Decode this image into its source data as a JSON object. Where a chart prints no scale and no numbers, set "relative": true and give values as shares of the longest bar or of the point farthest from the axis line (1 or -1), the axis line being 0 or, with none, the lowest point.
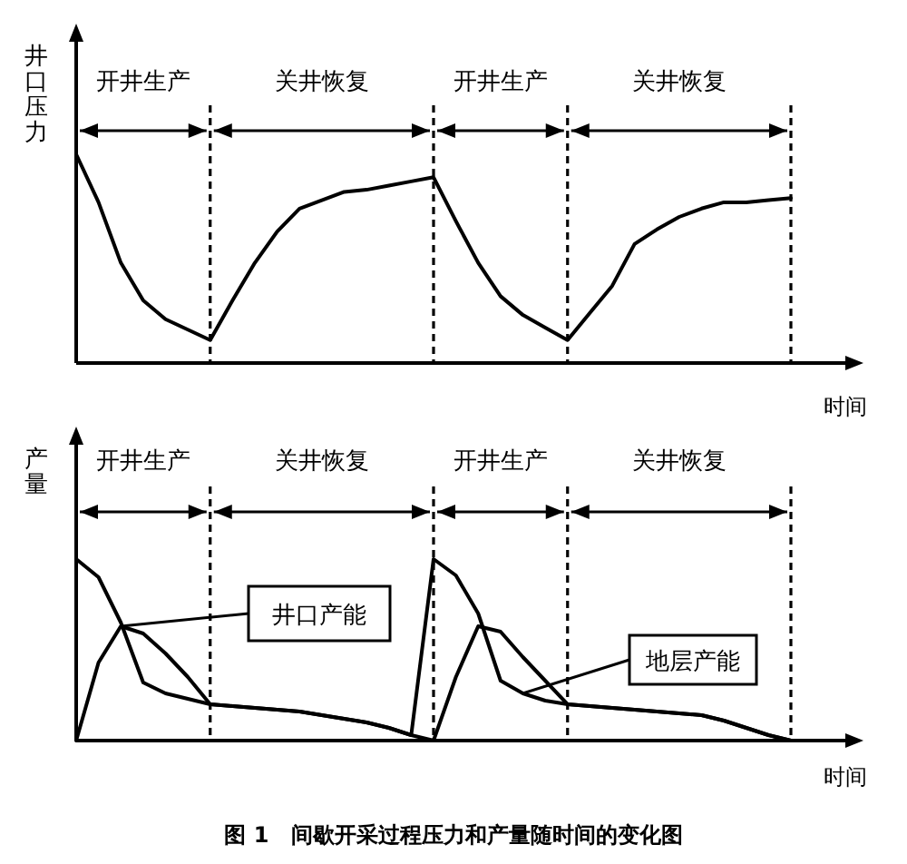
{
  "chart_data": [
    {
      "type": "line",
      "relative": true,
      "ylabel": "井口压力",
      "xlabel": "时间",
      "grid": "x",
      "marker": "none",
      "line_style": "solid",
      "categories": [
        null,
        null,
        null,
        null,
        null,
        null,
        null,
        null,
        null,
        null,
        null,
        null,
        null,
        null,
        null,
        null,
        null,
        null,
        null,
        null,
        null,
        null,
        null,
        null,
        null,
        null,
        null,
        null,
        null,
        null,
        null,
        null,
        null
      ],
      "series": [
        {
          "color": "#000000",
          "values": [
            1.0,
            0.77,
            0.48,
            0.3,
            0.21,
            0.16,
            0.11,
            0.3,
            0.48,
            0.63,
            0.74,
            0.78,
            0.82,
            0.83,
            0.85,
            0.87,
            0.89,
            0.68,
            0.48,
            0.32,
            0.23,
            0.17,
            0.11,
            0.24,
            0.37,
            0.57,
            0.64,
            0.7,
            0.74,
            0.77,
            0.77,
            0.78,
            0.79
          ]
        }
      ],
      "annotations": [
        "开井生产",
        "关井恢复",
        "开井生产",
        "关井恢复"
      ]
    },
    {
      "type": "line",
      "relative": true,
      "ylabel": "产量",
      "xlabel": "时间",
      "grid": "x",
      "legend": "right",
      "marker": "none",
      "line_style": "solid",
      "categories": [
        null,
        null,
        null,
        null,
        null,
        null,
        null,
        null,
        null,
        null,
        null,
        null,
        null,
        null,
        null,
        null,
        null,
        null,
        null,
        null,
        null,
        null,
        null,
        null,
        null,
        null,
        null,
        null,
        null,
        null,
        null,
        null,
        null
      ],
      "series": [
        {
          "name": "井口产能",
          "color": "#000000",
          "values": [
            0,
            0.43,
            0.63,
            0.59,
            0.48,
            0.35,
            0.2,
            0.19,
            0.18,
            0.17,
            0.16,
            0.14,
            0.12,
            0.1,
            0.07,
            0.03,
            0,
            0.35,
            0.63,
            0.6,
            0.46,
            0.33,
            0.2,
            0.19,
            0.18,
            0.17,
            0.16,
            0.15,
            0.14,
            0.11,
            0.07,
            0.03,
            0
          ]
        },
        {
          "name": "地层产能",
          "color": "#000000",
          "values": [
            1.0,
            0.9,
            0.65,
            0.32,
            0.26,
            0.23,
            0.2,
            0.19,
            0.18,
            0.17,
            0.16,
            0.14,
            0.12,
            0.1,
            0.07,
            0.03,
            1.0,
            0.91,
            0.7,
            0.33,
            0.26,
            0.22,
            0.2,
            0.19,
            0.18,
            0.17,
            0.16,
            0.15,
            0.14,
            0.11,
            0.07,
            0.03,
            0
          ]
        }
      ],
      "annotations": [
        "开井生产",
        "关井恢复",
        "开井生产",
        "关井恢复",
        "图 1　间歇开采过程压力和产量随时间的变化图"
      ]
    }
  ]
}
